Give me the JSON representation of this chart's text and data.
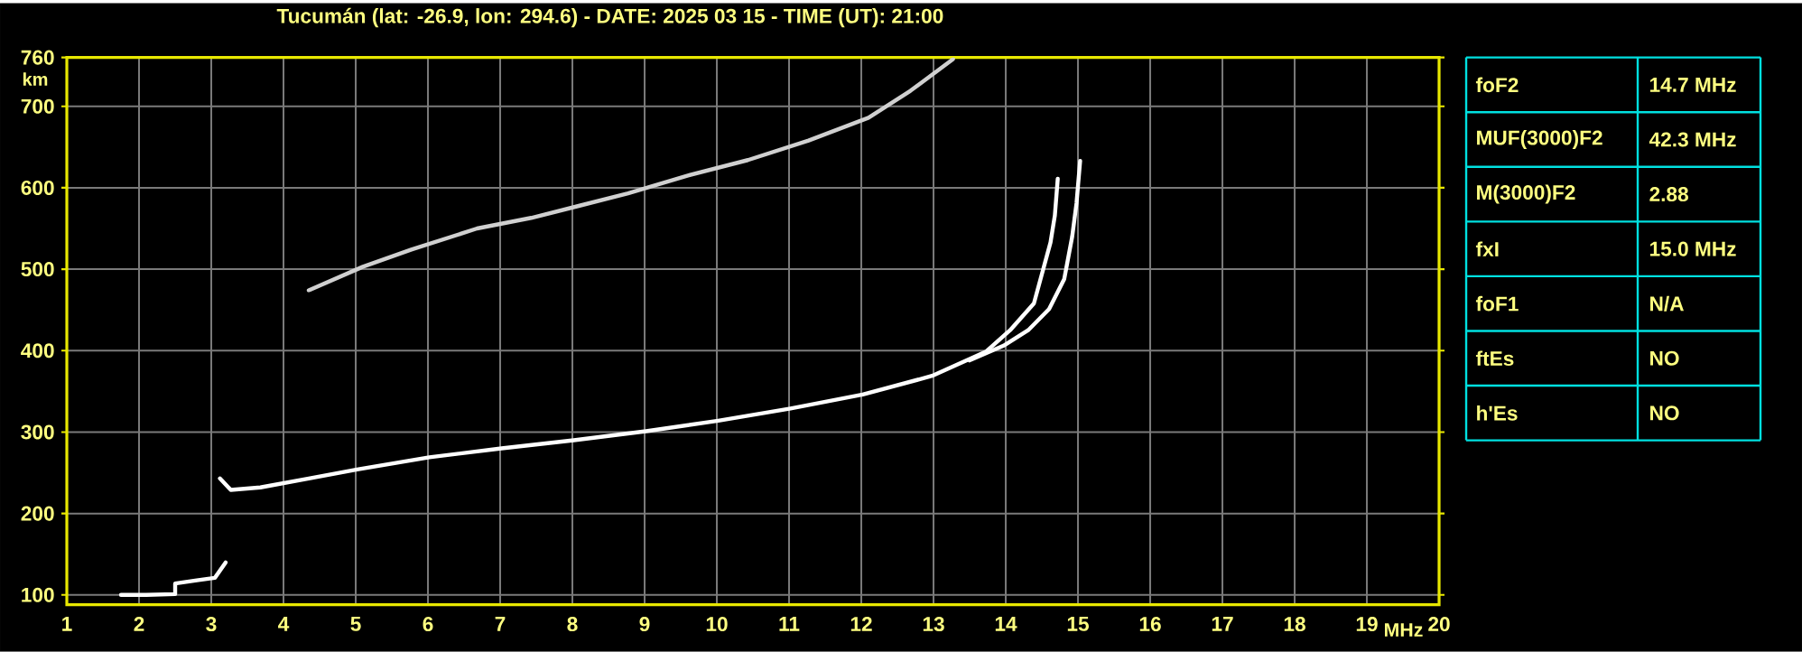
{
  "chart_data": [
    {
      "type": "line",
      "title": "Tucumán (lat: -26.9, lon: 294.6) - DATE: 2025 03 15 - TIME (UT): 21:00",
      "xlabel": "MHz",
      "ylabel": "km",
      "xlim": [
        1,
        20
      ],
      "ylim": [
        88,
        760
      ],
      "xticks": [
        1,
        2,
        3,
        4,
        5,
        6,
        7,
        8,
        9,
        10,
        11,
        12,
        13,
        14,
        15,
        16,
        17,
        18,
        19,
        20
      ],
      "yticks": [
        100,
        200,
        300,
        400,
        500,
        600,
        700,
        760
      ],
      "grid": true,
      "series": [
        {
          "color": "#ffffff",
          "x": [
            1.75,
            2.1,
            2.5,
            2.5,
            2.8,
            3.05,
            3.2
          ],
          "values": [
            100,
            100,
            101,
            114,
            118,
            121,
            140
          ]
        },
        {
          "color": "#ffffff",
          "x": [
            3.12,
            3.27,
            3.68,
            4.35,
            5.02,
            6.02,
            7.02,
            8.02,
            9.02,
            10.02,
            11.02,
            12.02,
            12.98,
            13.73,
            14.06,
            14.39,
            14.62,
            14.68,
            14.72
          ],
          "values": [
            243,
            229,
            232,
            243,
            254,
            269,
            280,
            290,
            301,
            314,
            329,
            346,
            369,
            399,
            425,
            458,
            533,
            566,
            611
          ]
        },
        {
          "color": "#ffffff",
          "x": [
            13.5,
            13.97,
            14.31,
            14.6,
            14.81,
            14.92,
            14.98,
            15.03
          ],
          "values": [
            388,
            406,
            425,
            451,
            488,
            540,
            581,
            633
          ]
        },
        {
          "color": "#d0d0d0",
          "x": [
            4.35,
            5.1,
            5.77,
            6.68,
            7.43,
            8.1,
            8.77,
            9.6,
            10.43,
            11.27,
            12.1,
            12.68,
            13.27
          ],
          "values": [
            474,
            503,
            524,
            550,
            563,
            578,
            593,
            615,
            634,
            658,
            686,
            719,
            758
          ]
        }
      ]
    },
    {
      "type": "other",
      "categories": [
        "foF2",
        "MUF(3000)F2",
        "M(3000)F2",
        "fxI",
        "foF1",
        "ftEs",
        "h'Es"
      ],
      "value_labels": [
        "14.7 MHz",
        "42.3 MHz",
        "2.88",
        "15.0 MHz",
        "N/A",
        "NO",
        "NO"
      ]
    }
  ]
}
